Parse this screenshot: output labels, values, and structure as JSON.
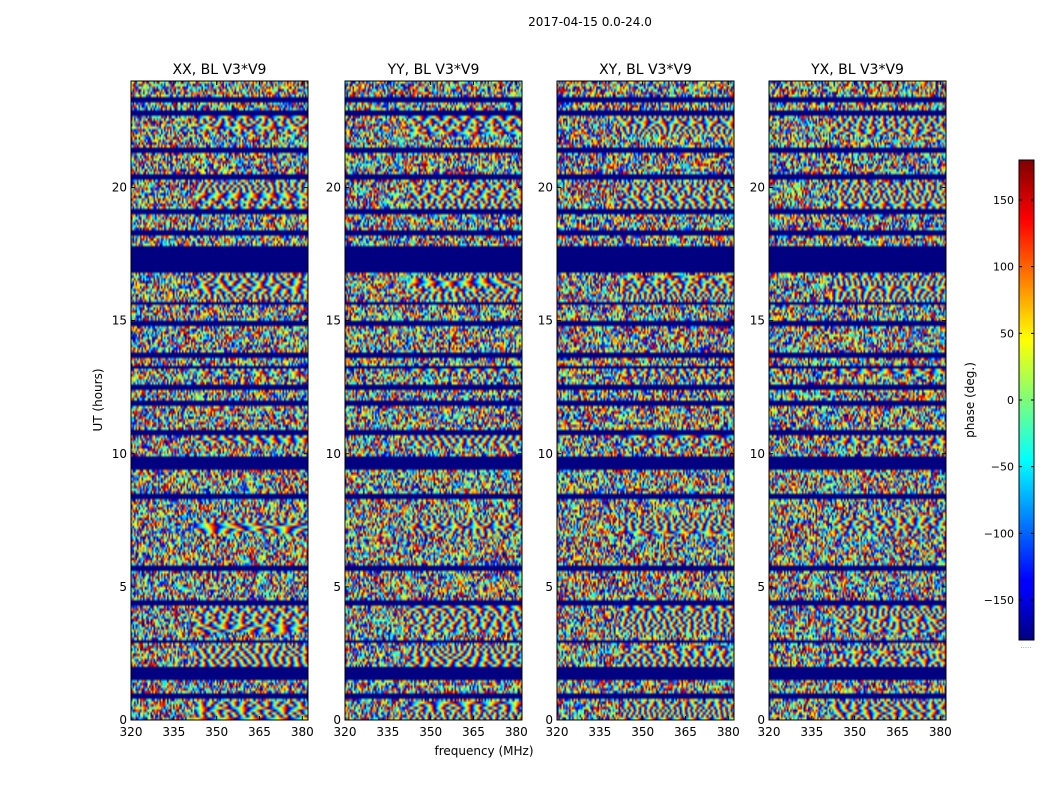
{
  "chart_data": {
    "type": "heatmap",
    "suptitle": "2017-04-15 0.0-24.0",
    "xlabel": "frequency (MHz)",
    "ylabel": "UT (hours)",
    "xlim": [
      320,
      382
    ],
    "ylim": [
      0,
      24
    ],
    "xticks": [
      {
        "value": 320,
        "label": "320"
      },
      {
        "value": 335,
        "label": "335"
      },
      {
        "value": 350,
        "label": "350"
      },
      {
        "value": 365,
        "label": "365"
      },
      {
        "value": 380,
        "label": "380"
      }
    ],
    "yticks": [
      {
        "value": 0,
        "label": "0"
      },
      {
        "value": 5,
        "label": "5"
      },
      {
        "value": 10,
        "label": "10"
      },
      {
        "value": 15,
        "label": "15"
      },
      {
        "value": 20,
        "label": "20"
      }
    ],
    "panels": [
      {
        "title": "XX, BL V3*V9"
      },
      {
        "title": "YY, BL V3*V9"
      },
      {
        "title": "XY, BL V3*V9"
      },
      {
        "title": "YX, BL V3*V9"
      }
    ],
    "colorbar": {
      "label": "phase (deg.)",
      "colormap": "jet",
      "range": [
        -180,
        180
      ],
      "ticks": [
        {
          "value": 150,
          "label": "150"
        },
        {
          "value": 100,
          "label": "100"
        },
        {
          "value": 50,
          "label": "50"
        },
        {
          "value": 0,
          "label": "0"
        },
        {
          "value": -50,
          "label": "−50"
        },
        {
          "value": -100,
          "label": "−100"
        },
        {
          "value": -150,
          "label": "−150"
        }
      ]
    },
    "masked_time_ranges_hours": [
      [
        0.85,
        1.0
      ],
      [
        1.45,
        2.0
      ],
      [
        2.9,
        3.05
      ],
      [
        4.35,
        4.5
      ],
      [
        5.6,
        5.75
      ],
      [
        8.3,
        8.45
      ],
      [
        9.35,
        9.9
      ],
      [
        10.75,
        10.9
      ],
      [
        11.85,
        12.0
      ],
      [
        12.45,
        12.6
      ],
      [
        13.2,
        13.35
      ],
      [
        13.6,
        13.75
      ],
      [
        14.8,
        14.95
      ],
      [
        15.55,
        15.7
      ],
      [
        16.8,
        17.8
      ],
      [
        18.2,
        18.35
      ],
      [
        19.05,
        19.15
      ],
      [
        20.35,
        20.5
      ],
      [
        21.35,
        21.45
      ],
      [
        22.75,
        22.85
      ],
      [
        23.2,
        23.4
      ]
    ],
    "stripe_time_ranges_hours": [
      [
        0.0,
        0.7
      ],
      [
        2.0,
        2.8
      ],
      [
        3.3,
        4.3
      ],
      [
        7.0,
        7.6
      ],
      [
        10.3,
        10.7
      ],
      [
        13.0,
        13.3
      ],
      [
        15.8,
        16.7
      ],
      [
        19.2,
        20.2
      ],
      [
        22.0,
        22.7
      ]
    ]
  }
}
